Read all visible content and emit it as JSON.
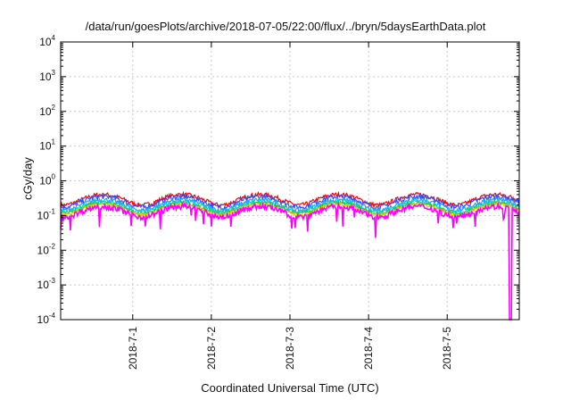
{
  "chart_data": {
    "type": "line",
    "title": "/data/run/goesPlots/archive/2018-07-05/22:00/flux/../bryn/5daysEarthData.plot",
    "xlabel": "Coordinated Universal Time (UTC)",
    "ylabel": "cGy/day",
    "yscale": "log",
    "ylim": [
      0.0001,
      10000
    ],
    "ytick_labels": [
      {
        "base": "10",
        "exp": "-4"
      },
      {
        "base": "10",
        "exp": "-3"
      },
      {
        "base": "10",
        "exp": "-2"
      },
      {
        "base": "10",
        "exp": "-1"
      },
      {
        "base": "10",
        "exp": "0"
      },
      {
        "base": "10",
        "exp": "1"
      },
      {
        "base": "10",
        "exp": "2"
      },
      {
        "base": "10",
        "exp": "3"
      },
      {
        "base": "10",
        "exp": "4"
      }
    ],
    "x_start": "2018-06-30T02:00",
    "x_end": "2018-07-05T22:00",
    "xticks": [
      "2018-7-1",
      "2018-7-2",
      "2018-7-3",
      "2018-7-4",
      "2018-7-5"
    ],
    "xtick_positions": [
      "2018-07-01T00:00",
      "2018-07-02T00:00",
      "2018-07-03T00:00",
      "2018-07-04T00:00",
      "2018-07-05T00:00"
    ],
    "grid": true,
    "legend": "none",
    "series": [
      {
        "color": "#ff0000",
        "base_level": 0.38,
        "variability": 0.3
      },
      {
        "color": "#2e4bff",
        "base_level": 0.33,
        "variability": 0.35
      },
      {
        "color": "#1ea0ff",
        "base_level": 0.27,
        "variability": 0.3
      },
      {
        "color": "#00d8c0",
        "base_level": 0.24,
        "variability": 0.25
      },
      {
        "color": "#2ec82e",
        "base_level": 0.22,
        "variability": 0.22
      },
      {
        "color": "#e6c800",
        "base_level": 0.2,
        "variability": 0.22
      },
      {
        "color": "#ff00ff",
        "base_level": 0.17,
        "variability": 0.4
      }
    ],
    "magenta_dropout": {
      "start": "2018-07-05T19:00",
      "end": "2018-07-05T19:40",
      "value": 0.0001
    }
  }
}
